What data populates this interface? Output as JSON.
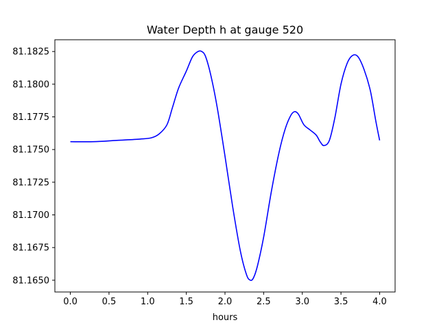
{
  "chart_data": {
    "type": "line",
    "title": "Water Depth h at gauge 520",
    "xlabel": "hours",
    "ylabel": "",
    "xlim": [
      -0.2,
      4.2
    ],
    "ylim": [
      81.1641,
      81.1834
    ],
    "x_ticks": [
      0.0,
      0.5,
      1.0,
      1.5,
      2.0,
      2.5,
      3.0,
      3.5,
      4.0
    ],
    "x_tick_labels": [
      "0.0",
      "0.5",
      "1.0",
      "1.5",
      "2.0",
      "2.5",
      "3.0",
      "3.5",
      "4.0"
    ],
    "y_ticks": [
      81.165,
      81.1675,
      81.17,
      81.1725,
      81.175,
      81.1775,
      81.18,
      81.1825
    ],
    "y_tick_labels": [
      "81.1650",
      "81.1675",
      "81.1700",
      "81.1725",
      "81.1750",
      "81.1775",
      "81.1800",
      "81.1825"
    ],
    "grid": false,
    "series": [
      {
        "color": "#0000ff",
        "x": [
          0.0,
          0.3,
          0.6,
          0.9,
          1.05,
          1.15,
          1.25,
          1.32,
          1.4,
          1.5,
          1.58,
          1.65,
          1.7,
          1.75,
          1.82,
          1.9,
          2.0,
          2.1,
          2.2,
          2.28,
          2.33,
          2.37,
          2.42,
          2.5,
          2.6,
          2.7,
          2.78,
          2.85,
          2.9,
          2.95,
          3.02,
          3.1,
          3.18,
          3.23,
          3.28,
          3.35,
          3.42,
          3.5,
          3.58,
          3.65,
          3.72,
          3.8,
          3.88,
          3.95,
          4.0
        ],
        "y": [
          81.1756,
          81.1756,
          81.1757,
          81.1758,
          81.1759,
          81.1762,
          81.1769,
          81.1782,
          81.1797,
          81.181,
          81.1821,
          81.1825,
          81.1825,
          81.1821,
          81.1806,
          81.1782,
          81.1745,
          81.1706,
          81.1672,
          81.1654,
          81.165,
          81.1652,
          81.1661,
          81.1683,
          81.1718,
          81.1748,
          81.1766,
          81.1776,
          81.1779,
          81.1777,
          81.1769,
          81.1765,
          81.1761,
          81.1756,
          81.1753,
          81.1757,
          81.1774,
          81.18,
          81.1816,
          81.1822,
          81.1821,
          81.1811,
          81.1795,
          81.1772,
          81.1757
        ]
      }
    ]
  }
}
